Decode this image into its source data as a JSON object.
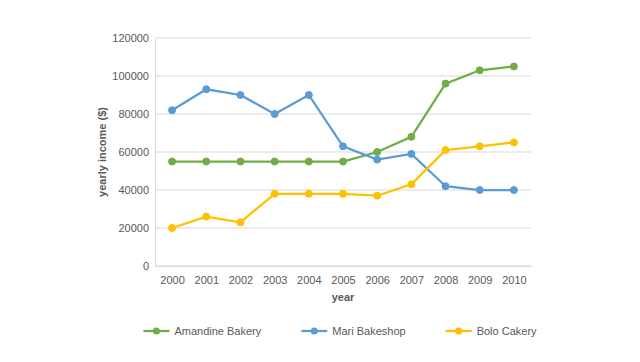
{
  "chart_data": {
    "type": "line",
    "x_label": "year",
    "y_label": "yearly income ($)",
    "categories": [
      "2000",
      "2001",
      "2002",
      "2003",
      "2004",
      "2005",
      "2006",
      "2007",
      "2008",
      "2009",
      "2010"
    ],
    "series": [
      {
        "name": "Amandine Bakery",
        "color": "#70ad47",
        "marker": "circle",
        "line_style": "solid",
        "values": [
          55000,
          55000,
          55000,
          55000,
          55000,
          55000,
          60000,
          68000,
          96000,
          103000,
          105000
        ]
      },
      {
        "name": "Mari Bakeshop",
        "color": "#5b9bd5",
        "marker": "circle",
        "line_style": "solid",
        "values": [
          82000,
          93000,
          90000,
          80000,
          90000,
          63000,
          56000,
          59000,
          42000,
          40000,
          40000
        ]
      },
      {
        "name": "Bolo Cakery",
        "color": "#ffc000",
        "marker": "circle",
        "line_style": "solid",
        "values": [
          20000,
          26000,
          23000,
          38000,
          38000,
          38000,
          37000,
          43000,
          61000,
          63000,
          65000
        ]
      }
    ],
    "ylim": [
      0,
      120000
    ],
    "yticks": [
      0,
      20000,
      40000,
      60000,
      80000,
      100000,
      120000
    ],
    "grid": true,
    "legend": "bottom"
  }
}
